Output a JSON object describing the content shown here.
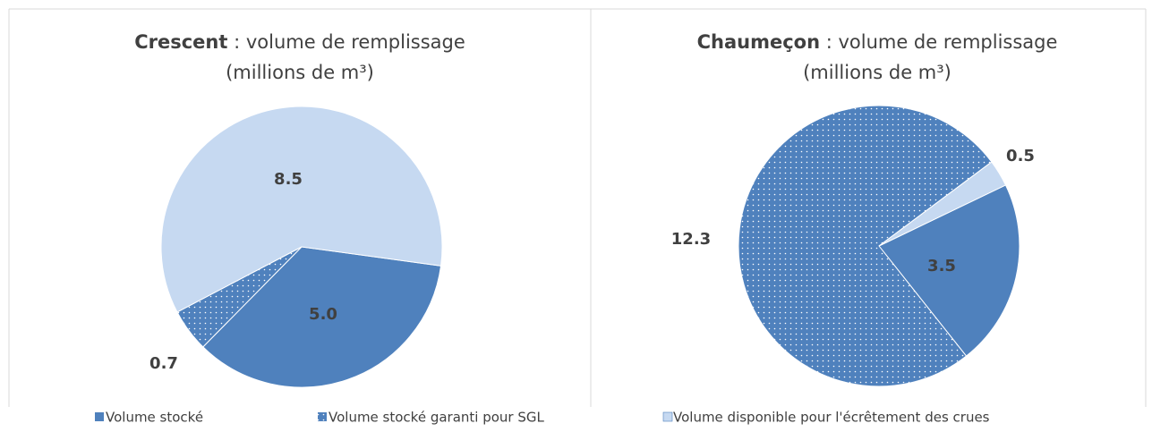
{
  "chart_data": [
    {
      "type": "pie",
      "title": {
        "name": "Crescent",
        "text": " : volume de remplissage",
        "unit": "(millions de m³)"
      },
      "categories": [
        "Volume stocké",
        "Volume stocké garanti pour SGL",
        "Volume disponible pour l'écrêtement des crues"
      ],
      "values": [
        5.0,
        0.7,
        8.5
      ],
      "value_labels": [
        "5.0",
        "0.7",
        "8.5"
      ],
      "colors": [
        "#4f81bd",
        "dots",
        "#c6d9f1"
      ]
    },
    {
      "type": "pie",
      "title": {
        "name": "Chaumeçon",
        "text": " : volume de remplissage",
        "unit": "(millions de m³)"
      },
      "categories": [
        "Volume stocké",
        "Volume stocké garanti pour SGL",
        "Volume disponible pour l'écrêtement des crues"
      ],
      "values": [
        3.5,
        12.3,
        0.5
      ],
      "value_labels": [
        "3.5",
        "12.3",
        "0.5"
      ],
      "colors": [
        "#4f81bd",
        "dots",
        "#c6d9f1"
      ]
    }
  ]
}
